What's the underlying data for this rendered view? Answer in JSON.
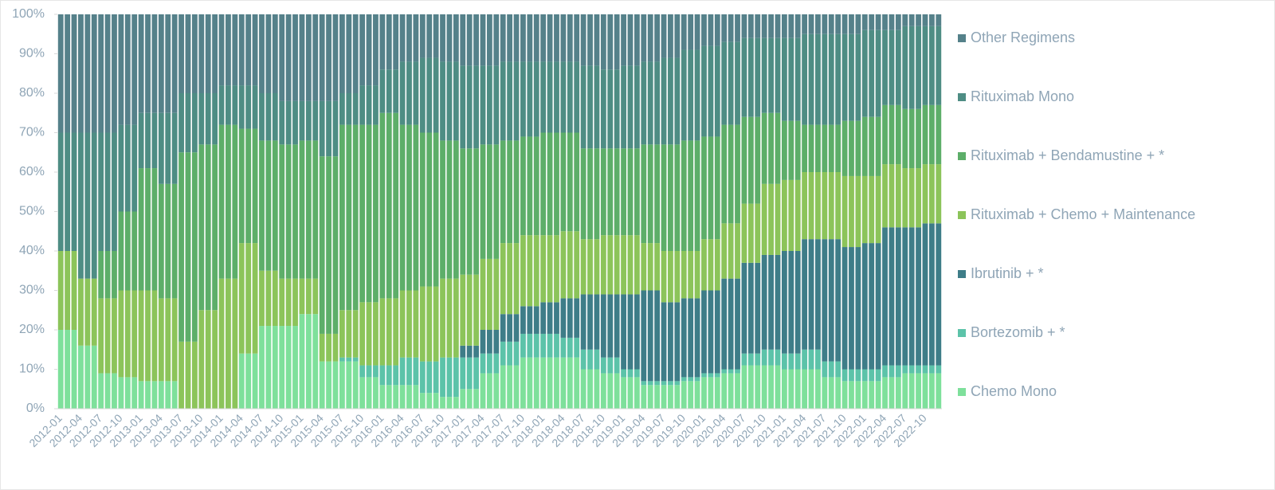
{
  "chart_data": {
    "type": "stacked_bar",
    "categories": [
      "2012-01",
      null,
      null,
      "2012-04",
      null,
      null,
      "2012-07",
      null,
      null,
      "2012-10",
      null,
      null,
      "2013-01",
      null,
      null,
      "2013-04",
      null,
      null,
      "2013-07",
      null,
      null,
      "2013-10",
      null,
      null,
      "2014-01",
      null,
      null,
      "2014-04",
      null,
      null,
      "2014-07",
      null,
      null,
      "2014-10",
      null,
      null,
      "2015-01",
      null,
      null,
      "2015-04",
      null,
      null,
      "2015-07",
      null,
      null,
      "2015-10",
      null,
      null,
      "2016-01",
      null,
      null,
      "2016-04",
      null,
      null,
      "2016-07",
      null,
      null,
      "2016-10",
      null,
      null,
      "2017-01",
      null,
      null,
      "2017-04",
      null,
      null,
      "2017-07",
      null,
      null,
      "2017-10",
      null,
      null,
      "2018-01",
      null,
      null,
      "2018-04",
      null,
      null,
      "2018-07",
      null,
      null,
      "2018-10",
      null,
      null,
      "2019-01",
      null,
      null,
      "2019-04",
      null,
      null,
      "2019-07",
      null,
      null,
      "2019-10",
      null,
      null,
      "2020-01",
      null,
      null,
      "2020-04",
      null,
      null,
      "2020-07",
      null,
      null,
      "2020-10",
      null,
      null,
      "2021-01",
      null,
      null,
      "2021-04",
      null,
      null,
      "2021-07",
      null,
      null,
      "2021-10",
      null,
      null,
      "2022-01",
      null,
      null,
      "2022-04",
      null,
      null,
      "2022-07",
      null,
      null,
      "2022-10",
      null,
      null
    ],
    "series": [
      {
        "name": "Chemo Mono",
        "color": "#7ee09b",
        "values": [
          20,
          20,
          20,
          16,
          16,
          16,
          9,
          9,
          9,
          8,
          8,
          8,
          7,
          7,
          7,
          7,
          7,
          7,
          0,
          0,
          0,
          0,
          0,
          0,
          0,
          0,
          0,
          14,
          14,
          14,
          21,
          21,
          21,
          21,
          21,
          21,
          24,
          24,
          24,
          12,
          12,
          12,
          12,
          12,
          12,
          8,
          8,
          8,
          6,
          6,
          6,
          6,
          6,
          6,
          4,
          4,
          4,
          3,
          3,
          3,
          5,
          5,
          5,
          9,
          9,
          9,
          11,
          11,
          11,
          13,
          13,
          13,
          13,
          13,
          13,
          13,
          13,
          13,
          10,
          10,
          10,
          9,
          9,
          9,
          8,
          8,
          8,
          6,
          6,
          6,
          6,
          6,
          6,
          7,
          7,
          7,
          8,
          8,
          8,
          9,
          9,
          9,
          11,
          11,
          11,
          11,
          11,
          11,
          10,
          10,
          10,
          10,
          10,
          10,
          8,
          8,
          8,
          7,
          7,
          7,
          7,
          7,
          7,
          8,
          8,
          8,
          9,
          9,
          9,
          9,
          9,
          9
        ]
      },
      {
        "name": "Bortezomib + *",
        "color": "#5cc3a9",
        "values": [
          0,
          0,
          0,
          0,
          0,
          0,
          0,
          0,
          0,
          0,
          0,
          0,
          0,
          0,
          0,
          0,
          0,
          0,
          0,
          0,
          0,
          0,
          0,
          0,
          0,
          0,
          0,
          0,
          0,
          0,
          0,
          0,
          0,
          0,
          0,
          0,
          0,
          0,
          0,
          0,
          0,
          0,
          1,
          1,
          1,
          3,
          3,
          3,
          5,
          5,
          5,
          7,
          7,
          7,
          8,
          8,
          8,
          10,
          10,
          10,
          8,
          8,
          8,
          5,
          5,
          5,
          6,
          6,
          6,
          6,
          6,
          6,
          6,
          6,
          6,
          5,
          5,
          5,
          5,
          5,
          5,
          4,
          4,
          4,
          2,
          2,
          2,
          1,
          1,
          1,
          1,
          1,
          1,
          1,
          1,
          1,
          1,
          1,
          1,
          1,
          1,
          1,
          3,
          3,
          3,
          4,
          4,
          4,
          4,
          4,
          4,
          5,
          5,
          5,
          4,
          4,
          4,
          3,
          3,
          3,
          3,
          3,
          3,
          3,
          3,
          3,
          2,
          2,
          2,
          2,
          2,
          2
        ]
      },
      {
        "name": "Ibrutinib + *",
        "color": "#3e7d88",
        "values": [
          0,
          0,
          0,
          0,
          0,
          0,
          0,
          0,
          0,
          0,
          0,
          0,
          0,
          0,
          0,
          0,
          0,
          0,
          0,
          0,
          0,
          0,
          0,
          0,
          0,
          0,
          0,
          0,
          0,
          0,
          0,
          0,
          0,
          0,
          0,
          0,
          0,
          0,
          0,
          0,
          0,
          0,
          0,
          0,
          0,
          0,
          0,
          0,
          0,
          0,
          0,
          0,
          0,
          0,
          0,
          0,
          0,
          0,
          0,
          0,
          3,
          3,
          3,
          6,
          6,
          6,
          7,
          7,
          7,
          7,
          7,
          7,
          8,
          8,
          8,
          10,
          10,
          10,
          14,
          14,
          14,
          16,
          16,
          16,
          19,
          19,
          19,
          23,
          23,
          23,
          20,
          20,
          20,
          20,
          20,
          20,
          21,
          21,
          21,
          23,
          23,
          23,
          23,
          23,
          23,
          24,
          24,
          24,
          26,
          26,
          26,
          28,
          28,
          28,
          31,
          31,
          31,
          31,
          31,
          31,
          32,
          32,
          32,
          35,
          35,
          35,
          35,
          35,
          35,
          36,
          36,
          36
        ]
      },
      {
        "name": "Rituximab + Chemo + Maintenance",
        "color": "#8cc45a",
        "values": [
          20,
          20,
          20,
          17,
          17,
          17,
          19,
          19,
          19,
          22,
          22,
          22,
          23,
          23,
          23,
          21,
          21,
          21,
          17,
          17,
          17,
          25,
          25,
          25,
          33,
          33,
          33,
          28,
          28,
          28,
          14,
          14,
          14,
          12,
          12,
          12,
          9,
          9,
          9,
          7,
          7,
          7,
          12,
          12,
          12,
          16,
          16,
          16,
          17,
          17,
          17,
          17,
          17,
          17,
          19,
          19,
          19,
          20,
          20,
          20,
          18,
          18,
          18,
          18,
          18,
          18,
          18,
          18,
          18,
          18,
          18,
          18,
          17,
          17,
          17,
          17,
          17,
          17,
          14,
          14,
          14,
          15,
          15,
          15,
          15,
          15,
          15,
          12,
          12,
          12,
          13,
          13,
          13,
          12,
          12,
          12,
          13,
          13,
          13,
          14,
          14,
          14,
          15,
          15,
          15,
          18,
          18,
          18,
          18,
          18,
          18,
          17,
          17,
          17,
          17,
          17,
          17,
          18,
          18,
          18,
          17,
          17,
          17,
          16,
          16,
          16,
          15,
          15,
          15,
          15,
          15,
          15
        ]
      },
      {
        "name": "Rituximab + Bendamustine + *",
        "color": "#5dae69",
        "values": [
          0,
          0,
          0,
          0,
          0,
          0,
          12,
          12,
          12,
          20,
          20,
          20,
          31,
          31,
          31,
          29,
          29,
          29,
          48,
          48,
          48,
          42,
          42,
          42,
          39,
          39,
          39,
          29,
          29,
          29,
          33,
          33,
          33,
          34,
          34,
          34,
          35,
          35,
          35,
          45,
          45,
          45,
          47,
          47,
          47,
          45,
          45,
          45,
          47,
          47,
          47,
          42,
          42,
          42,
          39,
          39,
          39,
          35,
          35,
          35,
          32,
          32,
          32,
          29,
          29,
          29,
          26,
          26,
          26,
          25,
          25,
          25,
          26,
          26,
          26,
          25,
          25,
          25,
          23,
          23,
          23,
          22,
          22,
          22,
          22,
          22,
          22,
          25,
          25,
          25,
          27,
          27,
          27,
          28,
          28,
          28,
          26,
          26,
          26,
          25,
          25,
          25,
          22,
          22,
          22,
          18,
          18,
          18,
          15,
          15,
          15,
          12,
          12,
          12,
          12,
          12,
          12,
          14,
          14,
          14,
          15,
          15,
          15,
          15,
          15,
          15,
          15,
          15,
          15,
          15,
          15,
          15
        ]
      },
      {
        "name": "Rituximab Mono",
        "color": "#4e8d84",
        "values": [
          30,
          30,
          30,
          37,
          37,
          37,
          30,
          30,
          30,
          22,
          22,
          22,
          14,
          14,
          14,
          18,
          18,
          18,
          15,
          15,
          15,
          13,
          13,
          13,
          10,
          10,
          10,
          11,
          11,
          11,
          12,
          12,
          12,
          11,
          11,
          11,
          10,
          10,
          10,
          14,
          14,
          14,
          8,
          8,
          8,
          10,
          10,
          10,
          11,
          11,
          11,
          16,
          16,
          16,
          19,
          19,
          19,
          20,
          20,
          20,
          21,
          21,
          21,
          20,
          20,
          20,
          20,
          20,
          20,
          19,
          19,
          19,
          18,
          18,
          18,
          18,
          18,
          18,
          21,
          21,
          21,
          20,
          20,
          20,
          21,
          21,
          21,
          21,
          21,
          21,
          22,
          22,
          22,
          23,
          23,
          23,
          23,
          23,
          23,
          21,
          21,
          21,
          20,
          20,
          20,
          19,
          19,
          19,
          21,
          21,
          21,
          23,
          23,
          23,
          23,
          23,
          23,
          22,
          22,
          22,
          22,
          22,
          22,
          19,
          19,
          19,
          21,
          21,
          21,
          20,
          20,
          20
        ]
      },
      {
        "name": "Other Regimens",
        "color": "#55818a",
        "values": [
          30,
          30,
          30,
          30,
          30,
          30,
          30,
          30,
          30,
          28,
          28,
          28,
          25,
          25,
          25,
          25,
          25,
          25,
          20,
          20,
          20,
          20,
          20,
          20,
          18,
          18,
          18,
          18,
          18,
          18,
          20,
          20,
          20,
          22,
          22,
          22,
          22,
          22,
          22,
          22,
          22,
          22,
          20,
          20,
          20,
          18,
          18,
          18,
          14,
          14,
          14,
          12,
          12,
          12,
          11,
          11,
          11,
          12,
          12,
          12,
          13,
          13,
          13,
          13,
          13,
          13,
          12,
          12,
          12,
          12,
          12,
          12,
          12,
          12,
          12,
          12,
          12,
          12,
          13,
          13,
          13,
          14,
          14,
          14,
          13,
          13,
          13,
          12,
          12,
          12,
          11,
          11,
          11,
          9,
          9,
          9,
          8,
          8,
          8,
          7,
          7,
          7,
          6,
          6,
          6,
          6,
          6,
          6,
          6,
          6,
          6,
          5,
          5,
          5,
          5,
          5,
          5,
          5,
          5,
          5,
          4,
          4,
          4,
          4,
          4,
          4,
          3,
          3,
          3,
          3,
          3,
          3
        ]
      }
    ],
    "ylim": [
      0,
      100
    ],
    "yticks": [
      {
        "value": 0,
        "label": "0%"
      },
      {
        "value": 10,
        "label": "10%"
      },
      {
        "value": 20,
        "label": "20%"
      },
      {
        "value": 30,
        "label": "30%"
      },
      {
        "value": 40,
        "label": "40%"
      },
      {
        "value": 50,
        "label": "50%"
      },
      {
        "value": 60,
        "label": "60%"
      },
      {
        "value": 70,
        "label": "70%"
      },
      {
        "value": 80,
        "label": "80%"
      },
      {
        "value": 90,
        "label": "90%"
      },
      {
        "value": 100,
        "label": "100%"
      }
    ],
    "legend": "right"
  }
}
